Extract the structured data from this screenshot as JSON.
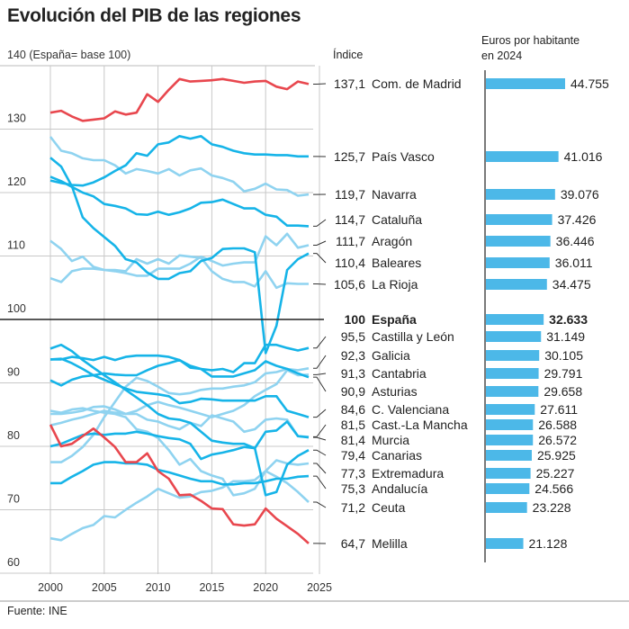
{
  "title": "Evolución del PIB de las regiones",
  "subtitle": "140 (España= base 100)",
  "index_header": "Índice",
  "euros_header_line1": "Euros por habitante",
  "euros_header_line2": "en 2024",
  "source": "Fuente: INE",
  "colors": {
    "highlight": "#e8474e",
    "dark_blue": "#16b4e8",
    "light_blue": "#8fd3f0",
    "bar": "#4cb8e8",
    "spain": "#222222"
  },
  "chart_data": [
    {
      "type": "line",
      "title": "Evolución del PIB de las regiones",
      "ylabel": "Índice (España= base 100)",
      "x": [
        2000,
        2001,
        2002,
        2003,
        2004,
        2005,
        2006,
        2007,
        2008,
        2009,
        2010,
        2011,
        2012,
        2013,
        2014,
        2015,
        2016,
        2017,
        2018,
        2019,
        2020,
        2021,
        2022,
        2023,
        2024
      ],
      "xticks": [
        "2000",
        "2005",
        "2010",
        "2015",
        "2020",
        "2025"
      ],
      "yticks": [
        "130",
        "120",
        "110",
        "100",
        "90",
        "80",
        "70",
        "60"
      ],
      "xlim": [
        2000,
        2025
      ],
      "ylim": [
        60,
        140
      ],
      "grid": true,
      "series": [
        {
          "name": "Com. de Madrid",
          "index": "137,1",
          "color": "highlight",
          "values": [
            132.6,
            132.9,
            132,
            131.3,
            131.5,
            131.7,
            132.8,
            132.3,
            132.6,
            135.5,
            134.3,
            136.2,
            137.9,
            137.5,
            137.6,
            137.7,
            137.9,
            137.6,
            137.3,
            137.5,
            137.6,
            136.7,
            136.3,
            137.5,
            137.1
          ]
        },
        {
          "name": "País Vasco",
          "index": "125,7",
          "color": "dark_blue",
          "values": [
            121.9,
            121.5,
            121.2,
            121.1,
            121.6,
            122.4,
            123.4,
            124.3,
            126.2,
            125.8,
            127.6,
            127.9,
            128.9,
            128.5,
            128.9,
            127.6,
            127.2,
            126.6,
            126.2,
            126,
            126,
            125.9,
            125.9,
            125.7,
            125.7
          ]
        },
        {
          "name": "Navarra",
          "index": "119,7",
          "color": "light_blue",
          "values": [
            128.8,
            126.6,
            126.2,
            125.4,
            125.1,
            125.1,
            124.3,
            123,
            123.7,
            123.4,
            123,
            123.7,
            122.7,
            123.5,
            123.8,
            122.7,
            122.3,
            121.7,
            120.2,
            120.6,
            121.4,
            120.5,
            120.4,
            119.5,
            119.7
          ]
        },
        {
          "name": "Cataluña",
          "index": "114,7",
          "color": "dark_blue",
          "values": [
            122.5,
            121.8,
            120.9,
            120,
            119.4,
            118.2,
            117.9,
            117.5,
            116.6,
            116.5,
            117,
            116.5,
            116.9,
            117.5,
            118.4,
            118.5,
            118.9,
            118.2,
            117.5,
            117.5,
            116.5,
            116.2,
            114.8,
            114.8,
            114.7
          ]
        },
        {
          "name": "Aragón",
          "index": "111,7",
          "color": "light_blue",
          "values": [
            106.5,
            105.9,
            107.6,
            108,
            108,
            107.8,
            107.6,
            107.3,
            106.9,
            106.9,
            108,
            108,
            108,
            108.8,
            109.9,
            109.2,
            108.5,
            108.8,
            109,
            109,
            113.1,
            111.7,
            113.5,
            111.3,
            111.7
          ]
        },
        {
          "name": "Baleares",
          "index": "110,4",
          "color": "dark_blue",
          "values": [
            125.5,
            124.1,
            121,
            116.1,
            114.4,
            113,
            111.6,
            109.5,
            109,
            107.4,
            106.4,
            106.4,
            107.3,
            107.6,
            109.2,
            109.7,
            111.1,
            111.2,
            111.2,
            110.6,
            94.7,
            99,
            107.8,
            109.5,
            110.4
          ]
        },
        {
          "name": "La Rioja",
          "index": "105,6",
          "color": "light_blue",
          "values": [
            112.4,
            111.1,
            109.2,
            109.9,
            108.3,
            107.8,
            107.8,
            107.6,
            109.5,
            108.8,
            109.5,
            108.8,
            110.1,
            109.9,
            109.7,
            107.6,
            106.4,
            105.9,
            105.9,
            105.2,
            107.6,
            105,
            105.7,
            105.6,
            105.6
          ]
        },
        {
          "name": "España",
          "index": "100",
          "color": "spain",
          "bold": true,
          "values": [
            100,
            100,
            100,
            100,
            100,
            100,
            100,
            100,
            100,
            100,
            100,
            100,
            100,
            100,
            100,
            100,
            100,
            100,
            100,
            100,
            100,
            100,
            100,
            100,
            100
          ]
        },
        {
          "name": "Castilla y León",
          "index": "95,5",
          "color": "dark_blue",
          "values": [
            93.7,
            93.7,
            94.1,
            93.9,
            93.6,
            94.1,
            93.6,
            94.1,
            94.3,
            94.3,
            94.3,
            94.1,
            93.6,
            92.7,
            92.2,
            92,
            92.2,
            91.7,
            93.1,
            93.1,
            96,
            96,
            95.5,
            95.1,
            95.5
          ]
        },
        {
          "name": "Galicia",
          "index": "92,3",
          "color": "light_blue",
          "values": [
            77.5,
            77.5,
            78.5,
            79.9,
            81.8,
            84.6,
            87,
            89.4,
            90.8,
            90.3,
            89.4,
            88.4,
            88.2,
            88.4,
            88.9,
            89.1,
            89.1,
            89.4,
            89.6,
            90.1,
            91.5,
            91.7,
            92.2,
            92,
            92.3
          ]
        },
        {
          "name": "Cantabria",
          "index": "91,3",
          "color": "light_blue",
          "values": [
            85.1,
            85.1,
            85.3,
            85.6,
            86.2,
            86.3,
            85.8,
            85.1,
            85.6,
            86.5,
            87,
            86.5,
            86.1,
            85.6,
            85.1,
            84.6,
            85.1,
            85.6,
            86.5,
            87.9,
            88.9,
            89.8,
            92,
            91.2,
            91.3
          ]
        },
        {
          "name": "Asturias",
          "index": "90,9",
          "color": "dark_blue",
          "values": [
            90.4,
            89.6,
            90.5,
            91,
            91.2,
            91.5,
            91.3,
            91.2,
            91.2,
            92,
            92.7,
            93.1,
            93.6,
            92.4,
            92.2,
            91,
            91,
            91,
            91.5,
            92,
            93.4,
            92.7,
            92.2,
            91.5,
            90.9
          ]
        },
        {
          "name": "C. Valenciana",
          "index": "84,6",
          "color": "dark_blue",
          "values": [
            93.7,
            93.8,
            93.1,
            92.2,
            91.2,
            90.5,
            89.8,
            89.1,
            88.6,
            88.4,
            88.2,
            87.9,
            86.8,
            87,
            87.5,
            87.4,
            87.2,
            87.2,
            87.2,
            87.2,
            87.9,
            87.9,
            85.6,
            85.1,
            84.6
          ]
        },
        {
          "name": "Cast.-La Mancha",
          "index": "81,5",
          "color": "light_blue",
          "values": [
            83.3,
            83.7,
            84.2,
            84.6,
            85.1,
            85.6,
            85.3,
            85.1,
            85.1,
            84.2,
            83.9,
            83.2,
            82.7,
            83.7,
            83.2,
            84.9,
            84.4,
            83.9,
            82.3,
            82.7,
            84.2,
            84.4,
            84.2,
            81.6,
            81.5
          ]
        },
        {
          "name": "Murcia",
          "index": "81,4",
          "color": "dark_blue",
          "values": [
            80,
            80.4,
            81.1,
            81.8,
            82,
            81.8,
            82,
            82,
            82.3,
            82,
            81.6,
            81.3,
            81.1,
            80.4,
            78,
            78.7,
            79,
            79.4,
            79.9,
            79.7,
            82.3,
            82.5,
            83.9,
            81.6,
            81.4
          ]
        },
        {
          "name": "Canarias",
          "index": "79,4",
          "color": "dark_blue",
          "values": [
            95.4,
            96,
            95,
            93.6,
            92.4,
            91.2,
            90.1,
            88.9,
            87.7,
            86.5,
            85.1,
            84.4,
            84.2,
            83.7,
            82.3,
            80.9,
            80.6,
            80.4,
            80.4,
            79.7,
            72.3,
            72.8,
            77.1,
            78.5,
            79.4
          ]
        },
        {
          "name": "Extremadura",
          "index": "77,3",
          "color": "light_blue",
          "values": [
            65.5,
            65.2,
            66.2,
            67.1,
            67.6,
            69,
            68.8,
            70,
            71.1,
            72.1,
            73.3,
            72.6,
            71.9,
            72.1,
            72.8,
            73,
            73.5,
            74.5,
            74.5,
            74.7,
            76.1,
            77.8,
            77.3,
            77.1,
            77.3
          ]
        },
        {
          "name": "Andalucía",
          "index": "75,3",
          "color": "dark_blue",
          "values": [
            74.2,
            74.2,
            75.2,
            76.1,
            77.1,
            77.5,
            77.5,
            77.3,
            77.3,
            77.1,
            76.3,
            75.9,
            75.4,
            74.9,
            74.5,
            74.5,
            74,
            74,
            74.2,
            74.2,
            74.5,
            74.9,
            74.9,
            75.2,
            75.3
          ]
        },
        {
          "name": "Ceuta",
          "index": "71,2",
          "color": "light_blue",
          "values": [
            85.6,
            85.3,
            85.8,
            86,
            85.6,
            85.3,
            85.1,
            84.6,
            82.7,
            82.3,
            81.3,
            79.4,
            77.1,
            78,
            76.1,
            75.4,
            74.9,
            72.3,
            72.6,
            73.3,
            76.1,
            75.2,
            74.2,
            72.8,
            71.2
          ]
        },
        {
          "name": "Melilla",
          "index": "64,7",
          "color": "highlight",
          "values": [
            83.4,
            80,
            80.4,
            81.6,
            82.8,
            81.4,
            79.9,
            77.5,
            77.5,
            78.9,
            76.1,
            74.9,
            72.3,
            72.4,
            71.4,
            70.2,
            70.1,
            67.7,
            67.5,
            67.7,
            70.2,
            68.6,
            67.4,
            66.2,
            64.7
          ]
        }
      ]
    },
    {
      "type": "bar",
      "title": "Euros por habitante en 2024",
      "categories": [
        "Com. de Madrid",
        "País Vasco",
        "Navarra",
        "Cataluña",
        "Aragón",
        "Baleares",
        "La Rioja",
        "España",
        "Castilla y León",
        "Galicia",
        "Cantabria",
        "Asturias",
        "C. Valenciana",
        "Cast.-La Mancha",
        "Murcia",
        "Canarias",
        "Extremadura",
        "Andalucía",
        "Ceuta",
        "Melilla"
      ],
      "values": [
        44755,
        41016,
        39076,
        37426,
        36446,
        36011,
        34475,
        32633,
        31149,
        30105,
        29791,
        29658,
        27611,
        26588,
        26572,
        25925,
        25227,
        24566,
        23228,
        21128
      ],
      "labels": [
        "44.755",
        "41.016",
        "39.076",
        "37.426",
        "36.446",
        "36.011",
        "34.475",
        "32.633",
        "31.149",
        "30.105",
        "29.791",
        "29.658",
        "27.611",
        "26.588",
        "26.572",
        "25.925",
        "25.227",
        "24.566",
        "23.228",
        "21.128"
      ]
    }
  ]
}
